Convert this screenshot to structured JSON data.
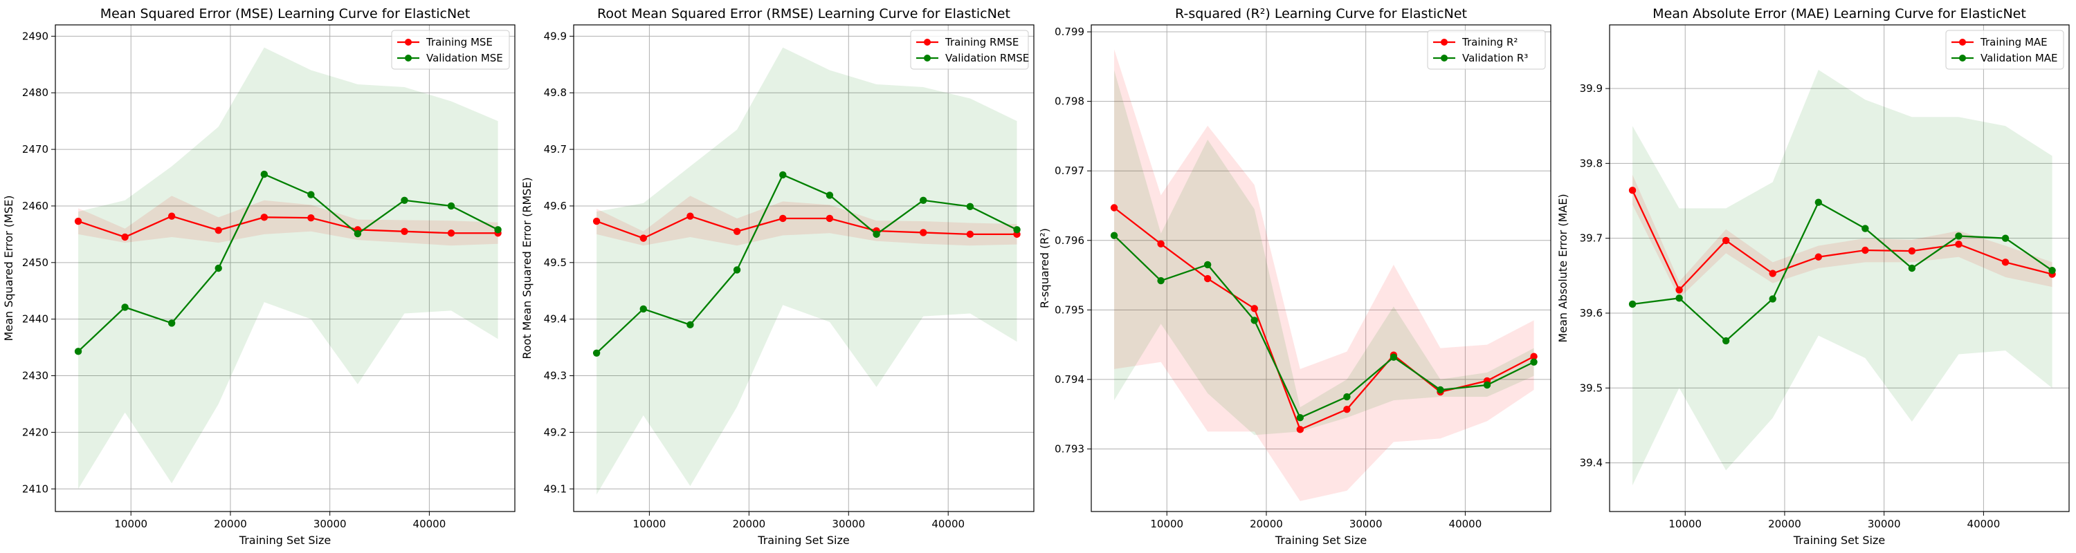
{
  "chart_data": [
    {
      "type": "line",
      "title": "Mean Squared Error (MSE) Learning Curve for ElasticNet",
      "xlabel": "Training Set Size",
      "ylabel": "Mean Squared Error (MSE)",
      "xlim": [
        2400,
        48600
      ],
      "ylim": [
        2406,
        2492
      ],
      "x_ticks": [
        10000,
        20000,
        30000,
        40000
      ],
      "y_ticks": [
        2410,
        2420,
        2430,
        2440,
        2450,
        2460,
        2470,
        2480,
        2490
      ],
      "y_tick_labels": [
        "2410",
        "2420",
        "2430",
        "2440",
        "2450",
        "2460",
        "2470",
        "2480",
        "2490"
      ],
      "grid": true,
      "legend_position": "top-right",
      "x": [
        4700,
        9400,
        14100,
        18800,
        23400,
        28100,
        32800,
        37500,
        42200,
        46900
      ],
      "series": [
        {
          "name": "Training MSE",
          "color": "#ff0000",
          "values": [
            2457.3,
            2454.5,
            2458.2,
            2455.7,
            2458.0,
            2457.9,
            2455.8,
            2455.5,
            2455.2,
            2455.2
          ],
          "band_lower": [
            2455.0,
            2453.5,
            2454.5,
            2453.5,
            2455.0,
            2455.5,
            2454.0,
            2453.5,
            2453.0,
            2453.3
          ],
          "band_upper": [
            2459.6,
            2456.0,
            2461.8,
            2458.0,
            2461.0,
            2460.2,
            2457.6,
            2457.5,
            2457.4,
            2457.1
          ]
        },
        {
          "name": "Validation MSE",
          "color": "#008000",
          "values": [
            2434.3,
            2442.1,
            2439.3,
            2449.0,
            2465.6,
            2462.0,
            2455.1,
            2461.0,
            2460.0,
            2455.8
          ],
          "band_lower": [
            2410.0,
            2423.5,
            2411.0,
            2425.0,
            2443.0,
            2440.0,
            2428.5,
            2441.0,
            2441.5,
            2436.5
          ],
          "band_upper": [
            2459.0,
            2461.0,
            2467.0,
            2474.0,
            2488.0,
            2484.0,
            2481.5,
            2481.0,
            2478.5,
            2475.0
          ]
        }
      ]
    },
    {
      "type": "line",
      "title": "Root Mean Squared Error (RMSE) Learning Curve for ElasticNet",
      "xlabel": "Training Set Size",
      "ylabel": "Root Mean Squared Error (RMSE)",
      "xlim": [
        2400,
        48600
      ],
      "ylim": [
        49.06,
        49.92
      ],
      "x_ticks": [
        10000,
        20000,
        30000,
        40000
      ],
      "y_ticks": [
        49.1,
        49.2,
        49.3,
        49.4,
        49.5,
        49.6,
        49.7,
        49.8,
        49.9
      ],
      "y_tick_labels": [
        "49.1",
        "49.2",
        "49.3",
        "49.4",
        "49.5",
        "49.6",
        "49.7",
        "49.8",
        "49.9"
      ],
      "grid": true,
      "legend_position": "top-right",
      "x": [
        4700,
        9400,
        14100,
        18800,
        23400,
        28100,
        32800,
        37500,
        42200,
        46900
      ],
      "series": [
        {
          "name": "Training RMSE",
          "color": "#ff0000",
          "values": [
            49.573,
            49.543,
            49.582,
            49.555,
            49.578,
            49.578,
            49.556,
            49.553,
            49.55,
            49.55
          ],
          "band_lower": [
            49.55,
            49.53,
            49.545,
            49.53,
            49.548,
            49.552,
            49.538,
            49.533,
            49.53,
            49.532
          ],
          "band_upper": [
            49.595,
            49.555,
            49.618,
            49.578,
            49.608,
            49.602,
            49.574,
            49.573,
            49.57,
            49.568
          ]
        },
        {
          "name": "Validation RMSE",
          "color": "#008000",
          "values": [
            49.34,
            49.418,
            49.39,
            49.487,
            49.655,
            49.619,
            49.55,
            49.61,
            49.599,
            49.558
          ],
          "band_lower": [
            49.09,
            49.23,
            49.105,
            49.245,
            49.425,
            49.395,
            49.28,
            49.405,
            49.41,
            49.36
          ],
          "band_upper": [
            49.59,
            49.605,
            49.67,
            49.735,
            49.88,
            49.84,
            49.815,
            49.81,
            49.79,
            49.75
          ]
        }
      ]
    },
    {
      "type": "line",
      "title": "R-squared (R²) Learning Curve for ElasticNet",
      "xlabel": "Training Set Size",
      "ylabel": "R-squared (R²)",
      "xlim": [
        2400,
        48600
      ],
      "ylim": [
        0.7921,
        0.7991
      ],
      "x_ticks": [
        10000,
        20000,
        30000,
        40000
      ],
      "y_ticks": [
        0.793,
        0.794,
        0.795,
        0.796,
        0.797,
        0.798,
        0.799
      ],
      "y_tick_labels": [
        "0.793",
        "0.794",
        "0.795",
        "0.796",
        "0.797",
        "0.798",
        "0.799"
      ],
      "grid": true,
      "legend_position": "top-right",
      "x": [
        4700,
        9400,
        14100,
        18800,
        23400,
        28100,
        32800,
        37500,
        42200,
        46900
      ],
      "series": [
        {
          "name": "Training R²",
          "color": "#ff0000",
          "values": [
            0.79647,
            0.79595,
            0.79545,
            0.79502,
            0.79328,
            0.79357,
            0.79435,
            0.79382,
            0.79398,
            0.79433
          ],
          "band_lower": [
            0.79415,
            0.79425,
            0.79325,
            0.79325,
            0.79225,
            0.7924,
            0.7931,
            0.79315,
            0.7934,
            0.79385
          ],
          "band_upper": [
            0.79875,
            0.79665,
            0.79765,
            0.7968,
            0.79415,
            0.7944,
            0.79565,
            0.79445,
            0.7945,
            0.79485
          ]
        },
        {
          "name": "Validation R³",
          "color": "#008000",
          "values": [
            0.79607,
            0.79542,
            0.79565,
            0.79485,
            0.79345,
            0.79375,
            0.79432,
            0.79385,
            0.79392,
            0.79425
          ],
          "band_lower": [
            0.7937,
            0.7948,
            0.7938,
            0.7932,
            0.79325,
            0.79345,
            0.7937,
            0.79375,
            0.79375,
            0.79405
          ],
          "band_upper": [
            0.79845,
            0.7961,
            0.79745,
            0.79645,
            0.7936,
            0.794,
            0.79505,
            0.794,
            0.7941,
            0.79445
          ]
        }
      ]
    },
    {
      "type": "line",
      "title": "Mean Absolute Error (MAE) Learning Curve for ElasticNet",
      "xlabel": "Training Set Size",
      "ylabel": "Mean Absolute Error (MAE)",
      "xlim": [
        2400,
        48600
      ],
      "ylim": [
        39.335,
        39.985
      ],
      "x_ticks": [
        10000,
        20000,
        30000,
        40000
      ],
      "y_ticks": [
        39.4,
        39.5,
        39.6,
        39.7,
        39.8,
        39.9
      ],
      "y_tick_labels": [
        "39.4",
        "39.5",
        "39.6",
        "39.7",
        "39.8",
        "39.9"
      ],
      "grid": true,
      "legend_position": "top-right",
      "x": [
        4700,
        9400,
        14100,
        18800,
        23400,
        28100,
        32800,
        37500,
        42200,
        46900
      ],
      "series": [
        {
          "name": "Training MAE",
          "color": "#ff0000",
          "values": [
            39.764,
            39.631,
            39.697,
            39.653,
            39.675,
            39.684,
            39.683,
            39.692,
            39.668,
            39.652
          ],
          "band_lower": [
            39.745,
            39.62,
            39.68,
            39.64,
            39.66,
            39.668,
            39.668,
            39.675,
            39.648,
            39.635
          ],
          "band_upper": [
            39.785,
            39.642,
            39.712,
            39.668,
            39.69,
            39.7,
            39.698,
            39.71,
            39.69,
            39.668
          ]
        },
        {
          "name": "Validation MAE",
          "color": "#008000",
          "values": [
            39.612,
            39.62,
            39.563,
            39.619,
            39.748,
            39.713,
            39.66,
            39.703,
            39.7,
            39.657
          ],
          "band_lower": [
            39.37,
            39.5,
            39.39,
            39.46,
            39.57,
            39.54,
            39.455,
            39.545,
            39.55,
            39.5
          ],
          "band_upper": [
            39.85,
            39.74,
            39.74,
            39.775,
            39.925,
            39.885,
            39.862,
            39.862,
            39.85,
            39.81
          ]
        }
      ]
    }
  ]
}
